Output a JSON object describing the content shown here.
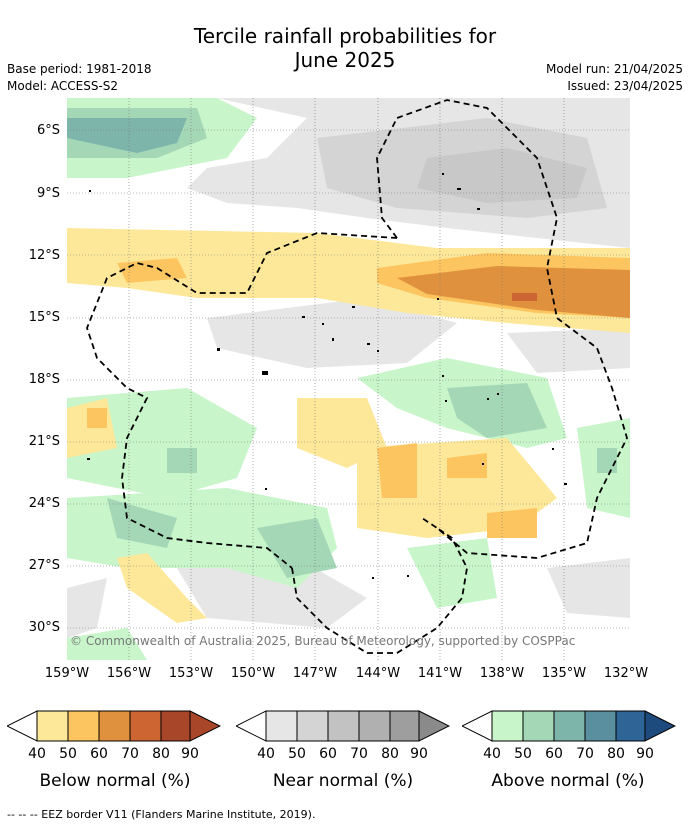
{
  "title_line1": "Tercile rainfall probabilities for",
  "title_line2": "June 2025",
  "base_period": "Base period: 1981-2018",
  "model": "Model: ACCESS-S2",
  "model_run": "Model run: 21/04/2025",
  "issued": "Issued: 23/04/2025",
  "lat_labels": [
    "6°S",
    "9°S",
    "12°S",
    "15°S",
    "18°S",
    "21°S",
    "24°S",
    "27°S",
    "30°S"
  ],
  "lon_labels": [
    "159°W",
    "156°W",
    "153°W",
    "150°W",
    "147°W",
    "144°W",
    "141°W",
    "138°W",
    "135°W",
    "132°W"
  ],
  "copyright": "© Commonwealth of Australia 2025, Bureau of Meteorology, supported by COSPPac",
  "colorbars": [
    {
      "label": "Below normal (%)",
      "ticks": [
        "40",
        "50",
        "60",
        "70",
        "80",
        "90"
      ],
      "colors": [
        "#fde89a",
        "#fcc560",
        "#e0913d",
        "#cd6532",
        "#a8462a",
        "#a8462a"
      ]
    },
    {
      "label": "Near normal (%)",
      "ticks": [
        "40",
        "50",
        "60",
        "70",
        "80",
        "90"
      ],
      "colors": [
        "#e6e6e6",
        "#d4d4d4",
        "#c2c2c2",
        "#b0b0b0",
        "#9e9e9e",
        "#8a8a8a"
      ]
    },
    {
      "label": "Above normal (%)",
      "ticks": [
        "40",
        "50",
        "60",
        "70",
        "80",
        "90"
      ],
      "colors": [
        "#c8f5c9",
        "#a4d7b6",
        "#7eb5ab",
        "#5a8fa0",
        "#2f6497",
        "#1e4b7e"
      ]
    }
  ],
  "footnote": "--  --  -- EEZ border V11 (Flanders Marine Institute, 2019).",
  "icons": [
    "colorbar-arrow-left-icon",
    "colorbar-arrow-right-icon"
  ]
}
